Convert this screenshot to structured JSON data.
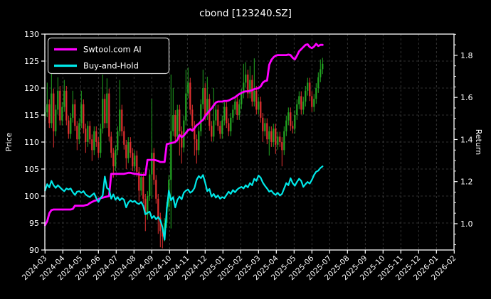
{
  "title": "cbond [123240.SZ]",
  "colors": {
    "background": "#000000",
    "text": "#ffffff",
    "frame": "#ffffff",
    "grid": "#3f3f3f",
    "candle_up": "#22a522",
    "candle_down": "#e03030",
    "ai_line": "#ff00ff",
    "bh_line": "#00e8e8"
  },
  "axes": {
    "left": {
      "label": "Price",
      "ticks": [
        90,
        95,
        100,
        105,
        110,
        115,
        120,
        125,
        130
      ],
      "range": [
        90,
        130
      ]
    },
    "right": {
      "label": "Return",
      "ticks": [
        1.0,
        1.2,
        1.4,
        1.6,
        1.8
      ],
      "minor_step": 0.05,
      "range": [
        0.875,
        1.901
      ]
    },
    "x": {
      "tick_labels": [
        "2024-03",
        "2024-04",
        "2024-05",
        "2024-06",
        "2024-07",
        "2024-08",
        "2024-09",
        "2024-10",
        "2024-11",
        "2024-12",
        "2025-01",
        "2025-02",
        "2025-03",
        "2025-04",
        "2025-05",
        "2025-06",
        "2025-07",
        "2025-08",
        "2025-09",
        "2025-10",
        "2025-11",
        "2025-12",
        "2026-01",
        "2026-02"
      ],
      "rotation_deg": -45
    }
  },
  "legend": {
    "items": [
      {
        "label": "Swtool.com AI",
        "color": "#ff00ff"
      },
      {
        "label": "Buy-and-Hold",
        "color": "#00e8e8"
      }
    ]
  },
  "chart_data": {
    "type": "candlestick+line",
    "title": "cbond [123240.SZ]",
    "x_axis": "months from 2024-03, data sampled every 0.12 month, data ends ~2025-06",
    "month_start": 0,
    "month_step": 0.12,
    "price_ylim": [
      90,
      130
    ],
    "return_ticks": [
      1.0,
      1.2,
      1.4,
      1.6,
      1.8
    ],
    "grid": "dashed major both axes",
    "legend_position": "upper-left",
    "candles": {
      "note": "open = previous close; high/low = body edge +/- default_wick unless overridden",
      "default_wick": 0.9,
      "closes": [
        115.5,
        117,
        113.5,
        119,
        112,
        116,
        119.5,
        114,
        116.5,
        119.5,
        114,
        111.5,
        114.5,
        117,
        113,
        110.5,
        113.5,
        117,
        112.5,
        110,
        113,
        110.5,
        108.5,
        112,
        110,
        108,
        112.5,
        118,
        113.5,
        119,
        111,
        108,
        105.5,
        108.5,
        112,
        116,
        112,
        109.5,
        107,
        110,
        108,
        105.5,
        107.5,
        104.5,
        101,
        103.5,
        99.5,
        96.5,
        100,
        104,
        108,
        103,
        99.5,
        96,
        93.5,
        92.5,
        95,
        98,
        103,
        112,
        115,
        111,
        116,
        112,
        109,
        114,
        119,
        121,
        116,
        113,
        110.5,
        108.5,
        112,
        117,
        120,
        115,
        118,
        113,
        111,
        114,
        116,
        113,
        111.5,
        114,
        116.5,
        113.5,
        112,
        114.5,
        116,
        117.5,
        115,
        117,
        119,
        121,
        122.5,
        119,
        121.5,
        117.5,
        119.5,
        116,
        117.5,
        114.5,
        112,
        113.5,
        110.5,
        112,
        110,
        112.5,
        109.5,
        111,
        110,
        108.5,
        112,
        114,
        115.5,
        113,
        112.5,
        115,
        117,
        118.5,
        116,
        117.5,
        119.5,
        121,
        118.5,
        116.5,
        118,
        120,
        122,
        123.5,
        124.5
      ],
      "high_overrides": {
        "1": 121.0,
        "3": 125.8,
        "6": 122.0,
        "9": 121.5,
        "13": 119.5,
        "17": 119.5,
        "27": 122.5,
        "29": 121.8,
        "35": 121.5,
        "50": 118.0,
        "59": 122.5,
        "60": 120.0,
        "66": 123.4,
        "67": 123.8,
        "74": 123.4,
        "76": 122.1,
        "79": 120.0,
        "93": 124.5,
        "94": 124.8,
        "96": 124.1,
        "98": 125.5,
        "129": 125.3,
        "130": 125.6
      },
      "low_overrides": {
        "4": 109.0,
        "15": 108.5,
        "19": 108.0,
        "22": 106.5,
        "32": 103.4,
        "38": 105.0,
        "44": 99.0,
        "47": 93.5,
        "50": 99.5,
        "53": 93.0,
        "54": 90.5,
        "55": 90.3,
        "59": 94.0,
        "63": 107.5,
        "64": 106.0,
        "70": 107.5,
        "71": 106.0,
        "102": 110.0,
        "105": 107.5,
        "108": 107.8,
        "111": 105.5
      }
    },
    "series": [
      {
        "name": "Swtool.com AI",
        "color": "#ff00ff",
        "axis": "price (right-axis return equivalent: 94.87 = 1.0, 126.05 = 1.8)",
        "values": [
          94.6,
          95.3,
          96.8,
          97.4,
          97.5,
          97.5,
          97.5,
          97.5,
          97.5,
          97.5,
          97.5,
          97.5,
          97.5,
          97.6,
          98.2,
          98.2,
          98.2,
          98.2,
          98.2,
          98.3,
          98.4,
          98.7,
          98.9,
          99.1,
          99.2,
          99.4,
          99.6,
          99.7,
          99.8,
          99.9,
          100.0,
          104.1,
          104.1,
          104.1,
          104.1,
          104.1,
          104.1,
          104.1,
          104.2,
          104.3,
          104.3,
          104.2,
          104.1,
          104.1,
          104.0,
          103.9,
          103.9,
          103.9,
          106.7,
          106.7,
          106.7,
          106.7,
          106.6,
          106.5,
          106.3,
          106.3,
          106.3,
          109.6,
          109.7,
          109.8,
          109.9,
          110.0,
          110.4,
          111.3,
          110.9,
          111.2,
          111.7,
          112.2,
          112.4,
          112.1,
          112.6,
          113.1,
          113.4,
          113.8,
          114.1,
          114.8,
          115.3,
          115.8,
          116.2,
          116.8,
          117.3,
          117.5,
          117.5,
          117.5,
          117.6,
          117.6,
          117.7,
          117.9,
          118.1,
          118.3,
          118.6,
          118.9,
          119.1,
          119.3,
          119.4,
          119.4,
          119.5,
          119.6,
          119.8,
          119.9,
          120.0,
          120.3,
          121.0,
          121.3,
          121.4,
          124.3,
          125.2,
          125.7,
          126.0,
          126.1,
          126.1,
          126.1,
          126.1,
          126.1,
          126.2,
          126.1,
          125.6,
          125.3,
          126.0,
          126.8,
          127.2,
          127.6,
          128.0,
          128.1,
          127.6,
          127.4,
          127.7,
          128.2,
          127.8,
          128.0,
          128.0
        ]
      },
      {
        "name": "Buy-and-Hold",
        "color": "#00e8e8",
        "axis": "price",
        "values": [
          101.0,
          102.2,
          101.6,
          102.8,
          102.0,
          101.5,
          102.0,
          101.6,
          101.2,
          100.9,
          101.4,
          101.2,
          101.4,
          100.7,
          100.2,
          100.8,
          100.9,
          100.6,
          100.9,
          100.3,
          100.0,
          99.8,
          100.2,
          100.5,
          99.6,
          98.9,
          99.6,
          100.1,
          103.6,
          101.5,
          101.2,
          99.5,
          100.3,
          99.3,
          99.8,
          99.2,
          99.6,
          99.3,
          97.9,
          98.8,
          99.2,
          98.9,
          99.1,
          98.7,
          98.5,
          98.9,
          98.2,
          96.6,
          96.9,
          97.1,
          95.9,
          96.3,
          95.7,
          96.1,
          95.5,
          94.2,
          91.9,
          97.5,
          101.0,
          99.2,
          99.8,
          97.9,
          99.3,
          99.9,
          99.4,
          100.6,
          101.0,
          101.2,
          100.6,
          100.9,
          101.5,
          103.0,
          103.7,
          103.3,
          103.9,
          102.5,
          100.9,
          101.3,
          99.9,
          100.4,
          99.7,
          100.1,
          99.5,
          99.8,
          99.6,
          100.2,
          100.8,
          100.4,
          101.1,
          100.7,
          101.2,
          101.5,
          101.7,
          101.4,
          102.0,
          101.6,
          102.4,
          102.0,
          103.2,
          102.8,
          103.8,
          103.4,
          102.5,
          101.9,
          101.4,
          100.8,
          101.0,
          100.5,
          100.2,
          100.6,
          100.1,
          100.4,
          101.4,
          102.4,
          102.0,
          103.3,
          102.4,
          101.9,
          102.6,
          103.2,
          102.8,
          101.7,
          102.2,
          102.6,
          102.3,
          103.0,
          103.9,
          104.5,
          104.7,
          105.2,
          105.5
        ]
      }
    ]
  }
}
